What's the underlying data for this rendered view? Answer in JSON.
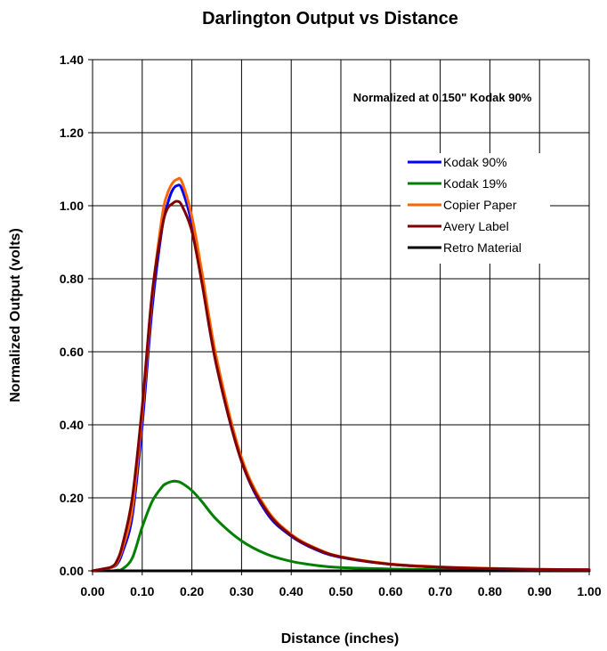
{
  "chart_data": {
    "type": "line",
    "title": "Darlington Output vs Distance",
    "annotation": "Normalized at 0.150\" Kodak 90%",
    "xlabel": "Distance (inches)",
    "ylabel": "Normalized Output (volts)",
    "xlim": [
      0,
      1.0
    ],
    "ylim": [
      0,
      1.4
    ],
    "x_ticks": [
      "0.00",
      "0.10",
      "0.20",
      "0.30",
      "0.40",
      "0.50",
      "0.60",
      "0.70",
      "0.80",
      "0.90",
      "1.00"
    ],
    "y_ticks": [
      "0.00",
      "0.20",
      "0.40",
      "0.60",
      "0.80",
      "1.00",
      "1.20",
      "1.40"
    ],
    "grid": true,
    "legend_position": "right, inside plot",
    "x": [
      0.0,
      0.02,
      0.04,
      0.05,
      0.06,
      0.08,
      0.1,
      0.12,
      0.14,
      0.15,
      0.16,
      0.17,
      0.18,
      0.2,
      0.22,
      0.25,
      0.3,
      0.35,
      0.4,
      0.45,
      0.5,
      0.6,
      0.7,
      0.8,
      0.9,
      1.0
    ],
    "series": [
      {
        "name": "Kodak 90%",
        "color": "#0000ff",
        "values": [
          0.0,
          0.005,
          0.01,
          0.02,
          0.05,
          0.15,
          0.4,
          0.72,
          0.94,
          1.0,
          1.04,
          1.055,
          1.045,
          0.95,
          0.8,
          0.56,
          0.3,
          0.16,
          0.095,
          0.058,
          0.037,
          0.018,
          0.01,
          0.006,
          0.004,
          0.003
        ]
      },
      {
        "name": "Kodak 19%",
        "color": "#008000",
        "values": [
          0.0,
          0.0,
          0.0,
          0.002,
          0.005,
          0.035,
          0.12,
          0.19,
          0.23,
          0.24,
          0.245,
          0.245,
          0.24,
          0.22,
          0.19,
          0.14,
          0.082,
          0.046,
          0.026,
          0.015,
          0.009,
          0.005,
          0.003,
          0.002,
          0.001,
          0.001
        ]
      },
      {
        "name": "Copier Paper",
        "color": "#ff6600",
        "values": [
          0.0,
          0.005,
          0.01,
          0.025,
          0.06,
          0.17,
          0.43,
          0.75,
          0.97,
          1.03,
          1.06,
          1.072,
          1.065,
          0.97,
          0.82,
          0.58,
          0.31,
          0.17,
          0.1,
          0.062,
          0.039,
          0.019,
          0.011,
          0.007,
          0.004,
          0.003
        ]
      },
      {
        "name": "Avery Label",
        "color": "#800000",
        "values": [
          0.0,
          0.005,
          0.012,
          0.03,
          0.07,
          0.2,
          0.45,
          0.76,
          0.94,
          0.99,
          1.005,
          1.012,
          1.0,
          0.93,
          0.79,
          0.56,
          0.3,
          0.165,
          0.097,
          0.06,
          0.038,
          0.018,
          0.01,
          0.006,
          0.004,
          0.003
        ]
      },
      {
        "name": "Retro Material",
        "color": "#000000",
        "values": [
          0.0,
          0.0,
          0.0,
          0.0,
          0.0,
          0.0,
          0.0,
          0.0,
          0.0,
          0.0,
          0.0,
          0.0,
          0.0,
          0.0,
          0.0,
          0.0,
          0.0,
          0.0,
          0.0,
          0.0,
          0.0,
          0.0,
          0.0,
          0.0,
          0.0,
          0.0
        ]
      }
    ]
  }
}
